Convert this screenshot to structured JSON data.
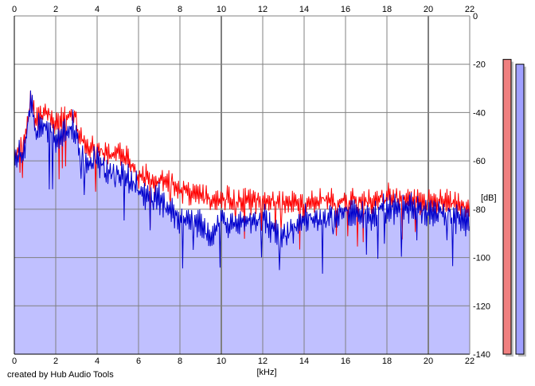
{
  "credit": "created by Hub Audio Tools",
  "chart_data": {
    "type": "line",
    "title": "",
    "xlabel": "[kHz]",
    "ylabel": "[dB]",
    "xlim": [
      0,
      22
    ],
    "ylim": [
      -140,
      0
    ],
    "x_ticks": [
      0,
      2,
      4,
      6,
      8,
      10,
      12,
      14,
      16,
      18,
      20,
      22
    ],
    "y_ticks": [
      0,
      -20,
      -40,
      -60,
      -80,
      -100,
      -120,
      -140
    ],
    "grid": true,
    "colors": {
      "red_series": "#ff0000",
      "blue_series": "#0000cc",
      "fill": "#c0c0ff",
      "meter_left": "#f08080",
      "meter_right": "#a0a0ff"
    },
    "series": [
      {
        "color": "#ff0000",
        "x": [
          0,
          0.2,
          0.4,
          0.6,
          0.8,
          1.0,
          1.2,
          1.5,
          1.8,
          2.0,
          2.3,
          2.6,
          2.9,
          3.2,
          3.5,
          4.0,
          4.5,
          5.0,
          5.5,
          6.0,
          6.5,
          7.0,
          7.5,
          8.0,
          8.5,
          9.0,
          9.5,
          10.0,
          11.0,
          12.0,
          13.0,
          14.0,
          15.0,
          16.0,
          17.0,
          18.0,
          19.0,
          20.0,
          21.0,
          21.5,
          22.0
        ],
        "values": [
          -58,
          -56,
          -52,
          -48,
          -32,
          -44,
          -40,
          -40,
          -42,
          -44,
          -43,
          -42,
          -41,
          -50,
          -56,
          -54,
          -57,
          -56,
          -60,
          -65,
          -68,
          -68,
          -69,
          -72,
          -74,
          -74,
          -77,
          -76,
          -76,
          -77,
          -76,
          -78,
          -76,
          -76,
          -77,
          -75,
          -76,
          -77,
          -77,
          -78,
          -80
        ]
      },
      {
        "color": "#0000cc",
        "x": [
          0,
          0.2,
          0.4,
          0.6,
          0.8,
          1.0,
          1.2,
          1.5,
          1.8,
          2.0,
          2.3,
          2.6,
          2.9,
          3.2,
          3.5,
          4.0,
          4.5,
          5.0,
          5.5,
          6.0,
          6.5,
          7.0,
          7.5,
          8.0,
          8.5,
          9.0,
          9.5,
          10.0,
          11.0,
          12.0,
          13.0,
          14.0,
          15.0,
          16.0,
          17.0,
          18.0,
          19.0,
          20.0,
          21.0,
          21.5,
          22.0
        ],
        "values": [
          -60,
          -58,
          -55,
          -50,
          -31,
          -48,
          -45,
          -46,
          -48,
          -52,
          -48,
          -47,
          -46,
          -56,
          -62,
          -60,
          -65,
          -64,
          -68,
          -72,
          -75,
          -76,
          -80,
          -84,
          -84,
          -86,
          -92,
          -84,
          -86,
          -84,
          -92,
          -84,
          -84,
          -82,
          -82,
          -80,
          -80,
          -81,
          -82,
          -84,
          -86
        ]
      }
    ],
    "meters": [
      {
        "channel": "left",
        "level_db": -18
      },
      {
        "channel": "right",
        "level_db": -20
      }
    ]
  }
}
